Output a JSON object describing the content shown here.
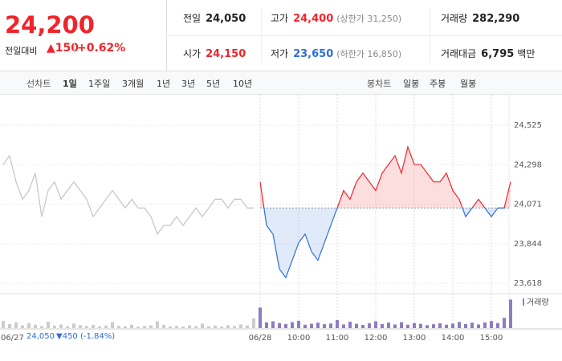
{
  "quote": {
    "price": "24,200",
    "change_label": "전일대비",
    "change": "150",
    "change_rate": "+0.62%",
    "items": [
      {
        "label": "전일",
        "value": "24,050"
      },
      {
        "label": "고가",
        "value": "24,400",
        "note": "(상한가 31,250)"
      },
      {
        "label": "거래량",
        "value": "282,290"
      },
      {
        "label": "시가",
        "value": "24,150"
      },
      {
        "label": "저가",
        "value": "23,650",
        "note": "(하한가 16,850)"
      },
      {
        "label": "거래대금",
        "value": "6,795",
        "unit": "백만"
      }
    ]
  },
  "tabs": {
    "line_label": "선차트",
    "line_periods": [
      "1일",
      "1주일",
      "3개월",
      "1년",
      "3년",
      "5년",
      "10년"
    ],
    "candle_label": "봉차트",
    "candle_periods": [
      "일봉",
      "주봉",
      "월봉"
    ]
  },
  "prev_day": {
    "close": "24,050",
    "change": "450",
    "rate": "(-1.84%)"
  },
  "chart_data": [
    {
      "type": "line",
      "categories": [
        "06/27",
        null,
        null,
        null,
        null,
        null,
        null,
        null,
        null,
        null,
        null,
        null,
        null,
        null,
        null,
        null,
        null,
        null,
        null,
        null,
        null,
        null,
        null,
        null,
        null,
        null,
        null,
        null,
        null,
        null,
        null,
        null,
        null,
        null,
        null,
        null,
        null,
        null,
        null,
        null,
        "06/28",
        null,
        null,
        null,
        null,
        null,
        "10:00",
        null,
        null,
        null,
        null,
        null,
        "11:00",
        null,
        null,
        null,
        null,
        null,
        "12:00",
        null,
        null,
        null,
        null,
        null,
        "13:00",
        null,
        null,
        null,
        null,
        null,
        "14:00",
        null,
        null,
        null,
        null,
        null,
        "15:00",
        null,
        null,
        null
      ],
      "series": [
        {
          "color": "#c4c4c4",
          "values": [
            24300,
            24350,
            24200,
            24100,
            24150,
            24250,
            24000,
            24150,
            24200,
            24100,
            24150,
            24200,
            24150,
            24100,
            24000,
            24050,
            24100,
            24150,
            24100,
            24050,
            24100,
            24050,
            24050,
            24000,
            23900,
            23950,
            23950,
            24000,
            23950,
            24000,
            24050,
            24000,
            24050,
            24100,
            24100,
            24050,
            24100,
            24100,
            24050,
            24050,
            null,
            null,
            null,
            null,
            null,
            null,
            null,
            null,
            null,
            null,
            null,
            null,
            null,
            null,
            null,
            null,
            null,
            null,
            null,
            null,
            null,
            null,
            null,
            null,
            null,
            null,
            null,
            null,
            null,
            null,
            null,
            null,
            null,
            null,
            null,
            null,
            null,
            null,
            null,
            null
          ]
        },
        {
          "up_color": "#f0252b",
          "down_color": "#2d6fd6",
          "values": [
            null,
            null,
            null,
            null,
            null,
            null,
            null,
            null,
            null,
            null,
            null,
            null,
            null,
            null,
            null,
            null,
            null,
            null,
            null,
            null,
            null,
            null,
            null,
            null,
            null,
            null,
            null,
            null,
            null,
            null,
            null,
            null,
            null,
            null,
            null,
            null,
            null,
            null,
            null,
            null,
            24200,
            23950,
            23900,
            23700,
            23650,
            23750,
            23850,
            23900,
            23800,
            23750,
            23850,
            23950,
            24050,
            24150,
            24100,
            24200,
            24250,
            24200,
            24150,
            24250,
            24300,
            24350,
            24250,
            24400,
            24300,
            24300,
            24250,
            24200,
            24200,
            24250,
            24150,
            24100,
            24000,
            24050,
            24100,
            24050,
            24000,
            24050,
            24050,
            24200
          ]
        }
      ],
      "reference": 24050,
      "ylim": [
        23577,
        24668
      ],
      "yticks": [
        {
          "value": 24525,
          "label": "24,525"
        },
        {
          "value": 24298,
          "label": "24,298"
        },
        {
          "value": 24071,
          "label": "24,071"
        },
        {
          "value": 23844,
          "label": "23,844"
        },
        {
          "value": 23618,
          "label": "23,618"
        }
      ],
      "grid": true
    },
    {
      "type": "bar",
      "ylim": [
        0,
        13000
      ],
      "series": [
        {
          "name": "거래량",
          "color": "#8e7cc3",
          "past_color": "#cccccc",
          "values": [
            3200,
            1800,
            2500,
            1200,
            2200,
            1500,
            900,
            2800,
            1100,
            1600,
            800,
            2000,
            1300,
            900,
            1400,
            700,
            1100,
            2600,
            1000,
            800,
            1500,
            600,
            900,
            1200,
            3000,
            1400,
            800,
            1000,
            700,
            1200,
            900,
            2000,
            800,
            1100,
            700,
            1300,
            900,
            1600,
            1200,
            4200,
            9000,
            2500,
            3000,
            2200,
            1800,
            2600,
            3200,
            1500,
            1900,
            2400,
            1700,
            2000,
            3500,
            1600,
            2800,
            1900,
            1400,
            2100,
            3000,
            1800,
            2400,
            1600,
            2600,
            1500,
            2200,
            1900,
            1300,
            1700,
            2100,
            1500,
            2000,
            2700,
            1800,
            2400,
            1600,
            2500,
            3100,
            2200,
            4500,
            12500
          ]
        }
      ]
    }
  ]
}
